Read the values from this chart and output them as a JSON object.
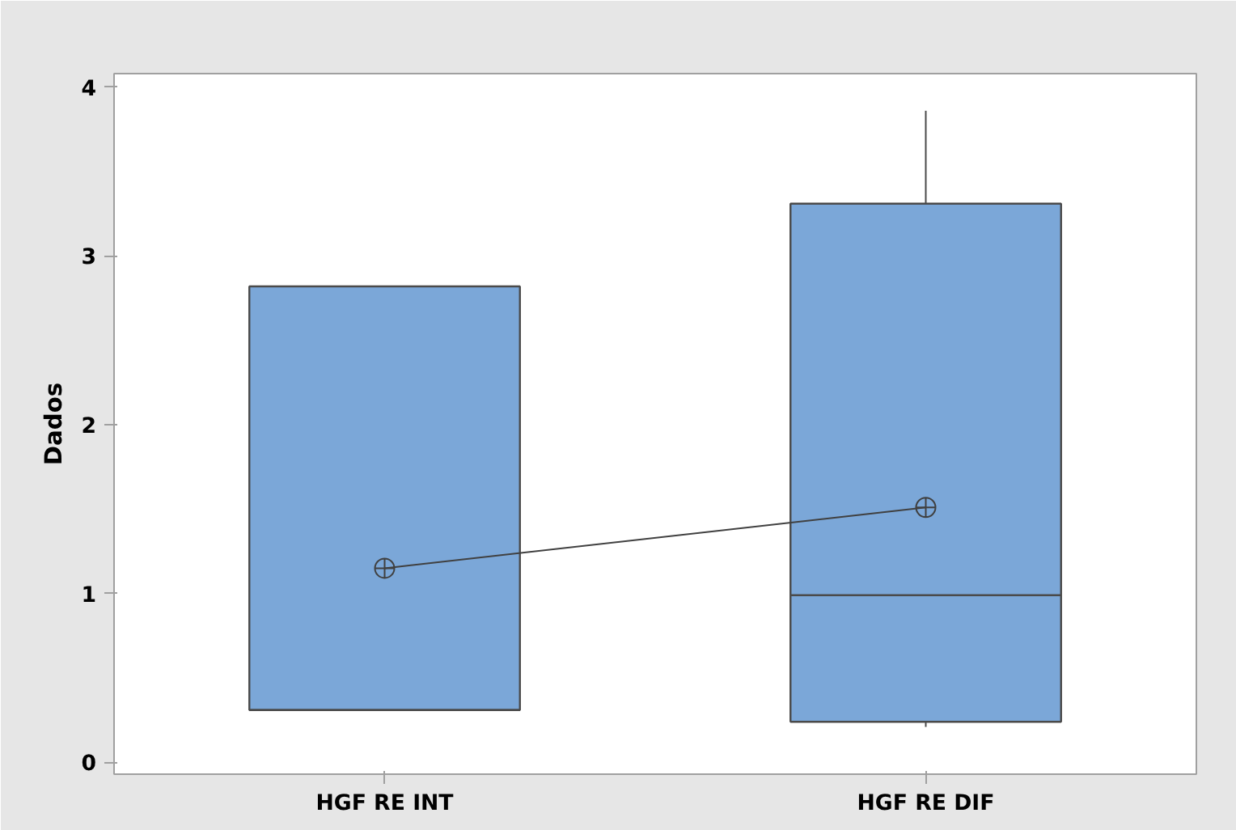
{
  "chart_data": {
    "type": "box",
    "ylabel": "Dados",
    "categories": [
      "HGF RE INT",
      "HGF RE DIF"
    ],
    "color": "#7ba7d8",
    "boxes": [
      {
        "low": 0.31,
        "q1": 0.31,
        "median": 0.31,
        "q3": 2.82,
        "high": 2.82,
        "mean": 1.15
      },
      {
        "low": 0.21,
        "q1": 0.24,
        "median": 0.99,
        "q3": 3.31,
        "high": 3.86,
        "mean": 1.51
      }
    ],
    "series": [
      {
        "type": "line",
        "values": [
          1.15,
          1.51
        ],
        "color": "#404040"
      }
    ],
    "ylim": [
      -0.07,
      4.08
    ],
    "yticks": [
      0,
      1,
      2,
      3,
      4
    ],
    "grid": false
  }
}
